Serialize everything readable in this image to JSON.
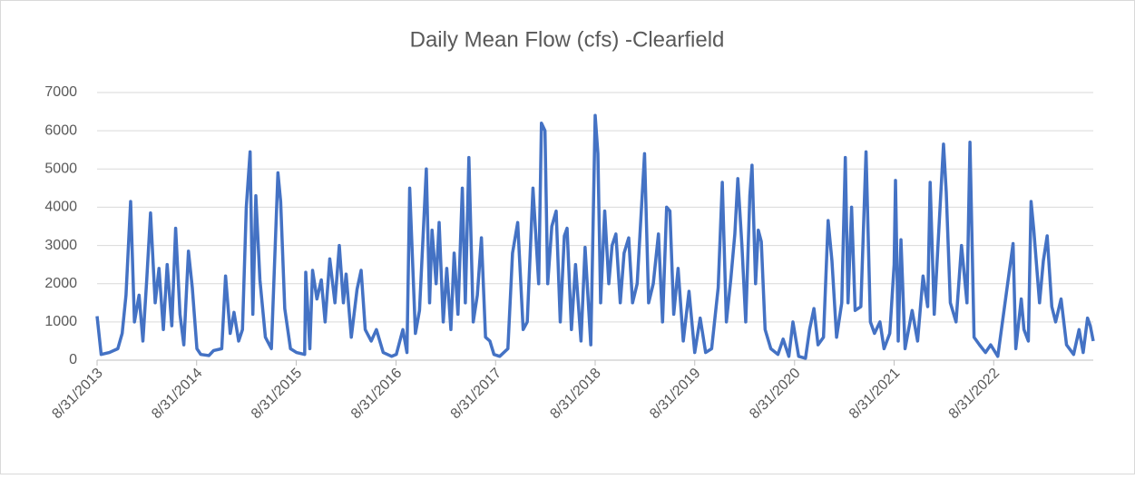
{
  "chart_data": {
    "type": "line",
    "title": "Daily Mean Flow (cfs) -Clearfield",
    "x": [
      "8/31/2013",
      "9/15/2013",
      "10/15/2013",
      "11/15/2013",
      "12/1/2013",
      "12/15/2013",
      "1/1/2014",
      "1/15/2014",
      "2/1/2014",
      "2/15/2014",
      "3/1/2014",
      "3/15/2014",
      "4/1/2014",
      "4/15/2014",
      "5/1/2014",
      "5/15/2014",
      "6/1/2014",
      "6/15/2014",
      "7/1/2014",
      "7/15/2014",
      "8/1/2014",
      "8/15/2014",
      "9/1/2014",
      "9/15/2014",
      "10/15/2014",
      "11/1/2014",
      "12/1/2014",
      "12/15/2014",
      "1/1/2015",
      "1/15/2015",
      "2/1/2015",
      "2/15/2015",
      "3/1/2015",
      "3/15/2015",
      "3/25/2015",
      "4/5/2015",
      "4/20/2015",
      "5/10/2015",
      "6/1/2015",
      "6/25/2015",
      "7/5/2015",
      "7/20/2015",
      "8/10/2015",
      "9/1/2015",
      "10/1/2015",
      "10/5/2015",
      "10/20/2015",
      "10/30/2015",
      "11/15/2015",
      "12/1/2015",
      "12/15/2015",
      "1/1/2016",
      "1/20/2016",
      "2/5/2016",
      "2/20/2016",
      "3/1/2016",
      "3/20/2016",
      "4/10/2016",
      "4/25/2016",
      "5/10/2016",
      "6/1/2016",
      "6/20/2016",
      "7/15/2016",
      "8/15/2016",
      "9/1/2016",
      "9/25/2016",
      "10/10/2016",
      "10/20/2016",
      "11/10/2016",
      "11/25/2016",
      "12/20/2016",
      "1/1/2017",
      "1/10/2017",
      "1/25/2017",
      "2/5/2017",
      "2/20/2017",
      "3/5/2017",
      "3/20/2017",
      "4/1/2017",
      "4/15/2017",
      "5/1/2017",
      "5/12/2017",
      "5/25/2017",
      "6/10/2017",
      "6/25/2017",
      "7/10/2017",
      "7/25/2017",
      "8/10/2017",
      "8/25/2017",
      "9/15/2017",
      "10/15/2017",
      "11/1/2017",
      "11/20/2017",
      "12/10/2017",
      "12/25/2017",
      "1/15/2018",
      "2/5/2018",
      "2/15/2018",
      "2/28/2018",
      "3/10/2018",
      "3/25/2018",
      "4/10/2018",
      "4/25/2018",
      "5/10/2018",
      "5/20/2018",
      "6/5/2018",
      "6/20/2018",
      "7/10/2018",
      "7/25/2018",
      "8/15/2018",
      "8/31/2018",
      "9/10/2018",
      "9/20/2018",
      "10/5/2018",
      "10/20/2018",
      "11/1/2018",
      "11/15/2018",
      "12/1/2018",
      "12/15/2018",
      "1/1/2019",
      "1/15/2019",
      "2/1/2019",
      "2/28/2019",
      "3/15/2019",
      "4/1/2019",
      "4/20/2019",
      "5/5/2019",
      "5/20/2019",
      "6/1/2019",
      "6/15/2019",
      "7/1/2019",
      "7/20/2019",
      "8/10/2019",
      "8/31/2019",
      "9/20/2019",
      "10/10/2019",
      "11/1/2019",
      "11/25/2019",
      "12/10/2019",
      "12/25/2019",
      "1/10/2020",
      "1/25/2020",
      "2/5/2020",
      "2/20/2020",
      "3/5/2020",
      "3/20/2020",
      "3/28/2020",
      "4/10/2020",
      "4/20/2020",
      "5/1/2020",
      "5/15/2020",
      "6/5/2020",
      "7/1/2020",
      "7/20/2020",
      "8/10/2020",
      "8/25/2020",
      "9/15/2020",
      "10/10/2020",
      "10/25/2020",
      "11/10/2020",
      "11/25/2020",
      "12/15/2020",
      "1/1/2021",
      "1/15/2021",
      "2/1/2021",
      "2/20/2021",
      "3/5/2021",
      "3/15/2021",
      "3/28/2021",
      "4/10/2021",
      "5/1/2021",
      "5/20/2021",
      "6/5/2021",
      "6/20/2021",
      "7/10/2021",
      "7/25/2021",
      "8/15/2021",
      "8/31/2021",
      "9/5/2021",
      "9/15/2021",
      "9/25/2021",
      "10/10/2021",
      "11/5/2021",
      "11/25/2021",
      "12/15/2021",
      "1/1/2022",
      "1/10/2022",
      "1/25/2022",
      "2/15/2022",
      "2/28/2022",
      "3/10/2022",
      "3/25/2022",
      "4/15/2022",
      "5/5/2022",
      "5/25/2022",
      "6/5/2022",
      "6/20/2022",
      "7/10/2022",
      "8/1/2022",
      "8/20/2022",
      "9/15/2022",
      "11/10/2022",
      "11/20/2022",
      "12/10/2022",
      "12/20/2022",
      "1/5/2023",
      "1/15/2023",
      "1/25/2023",
      "2/15/2023",
      "3/1/2023",
      "3/15/2023",
      "4/1/2023",
      "4/15/2023",
      "5/5/2023",
      "5/25/2023",
      "6/20/2023",
      "7/10/2023",
      "7/25/2023",
      "8/10/2023",
      "8/20/2023",
      "8/31/2023"
    ],
    "series": [
      {
        "name": "Daily Mean Flow",
        "color": "#4472c4",
        "values": [
          1150,
          150,
          200,
          300,
          700,
          1700,
          4150,
          1000,
          1700,
          500,
          2100,
          3850,
          1500,
          2400,
          800,
          2500,
          900,
          3450,
          1200,
          400,
          2850,
          1900,
          300,
          150,
          120,
          250,
          300,
          2200,
          700,
          1250,
          500,
          800,
          4000,
          5450,
          1200,
          4300,
          2100,
          600,
          300,
          4900,
          4150,
          1350,
          300,
          200,
          150,
          2300,
          300,
          2350,
          1600,
          2100,
          1000,
          2650,
          1500,
          3000,
          1500,
          2250,
          600,
          1850,
          2350,
          800,
          500,
          800,
          200,
          100,
          150,
          800,
          200,
          4500,
          700,
          1300,
          5000,
          1500,
          3400,
          2000,
          3600,
          1000,
          2400,
          800,
          2800,
          1200,
          4500,
          1500,
          5300,
          1000,
          1700,
          3200,
          600,
          500,
          150,
          100,
          300,
          2800,
          3600,
          800,
          1000,
          4500,
          2000,
          6200,
          6000,
          2000,
          3500,
          3900,
          1000,
          3250,
          3450,
          800,
          2500,
          500,
          2950,
          400,
          6400,
          5400,
          1500,
          3900,
          2000,
          3000,
          3300,
          1500,
          2800,
          3200,
          1500,
          2000,
          5400,
          1500,
          2000,
          3300,
          1000,
          4000,
          3900,
          1200,
          2400,
          500,
          1800,
          200,
          1100,
          200,
          300,
          1900,
          4650,
          1000,
          2100,
          3300,
          4750,
          3000,
          1000,
          4300,
          5100,
          2000,
          3400,
          3100,
          800,
          300,
          150,
          550,
          100,
          1000,
          100,
          50,
          800,
          1350,
          400,
          600,
          3650,
          2600,
          600,
          1500,
          5300,
          1500,
          4000,
          1300,
          1400,
          5450,
          1000,
          700,
          1000,
          300,
          700,
          2500,
          4700,
          500,
          3150,
          300,
          1300,
          500,
          2200,
          1400,
          4650,
          1200,
          3950,
          5650,
          4400,
          1500,
          1000,
          3000,
          1500,
          5700,
          600,
          400,
          200,
          400,
          100,
          3050,
          300,
          1600,
          800,
          500,
          4150,
          3400,
          1500,
          2600,
          3250,
          1400,
          1000,
          1600,
          400,
          150,
          800,
          200,
          1100,
          900,
          500
        ]
      }
    ],
    "xlim": [
      "8/31/2013",
      "8/31/2023"
    ],
    "xticks": [
      "8/31/2013",
      "8/31/2014",
      "8/31/2015",
      "8/31/2016",
      "8/31/2017",
      "8/31/2018",
      "8/31/2019",
      "8/31/2020",
      "8/31/2021",
      "8/31/2022"
    ],
    "ylim": [
      0,
      7000
    ],
    "yticks": [
      0,
      1000,
      2000,
      3000,
      4000,
      5000,
      6000,
      7000
    ],
    "grid": true
  }
}
